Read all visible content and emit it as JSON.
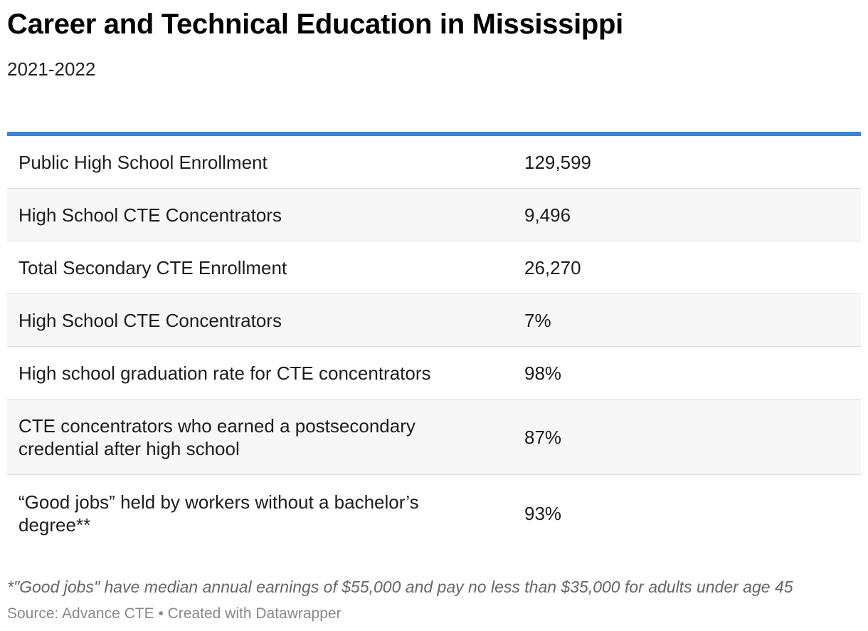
{
  "title": "Career and Technical Education in Mississippi",
  "subtitle": "2021-2022",
  "accent_color": "#3c84d6",
  "chart_data": {
    "type": "table",
    "rows": [
      {
        "label": "Public High School Enrollment",
        "value": "129,599"
      },
      {
        "label": "High School CTE Concentrators",
        "value": "9,496"
      },
      {
        "label": "Total Secondary CTE Enrollment",
        "value": "26,270"
      },
      {
        "label": "High School CTE Concentrators",
        "value": "7%"
      },
      {
        "label": "High school graduation rate for CTE concentrators",
        "value": "98%"
      },
      {
        "label": "CTE concentrators who earned a postsecondary credential after high school",
        "value": "87%"
      },
      {
        "label": "“Good jobs” held by workers without a bachelor’s degree**",
        "value": "93%"
      }
    ]
  },
  "footer": {
    "note": "*\"Good jobs\" have median annual earnings of $55,000 and pay no less than $35,000 for adults under age 45",
    "source": "Source: Advance CTE • Created with Datawrapper"
  }
}
